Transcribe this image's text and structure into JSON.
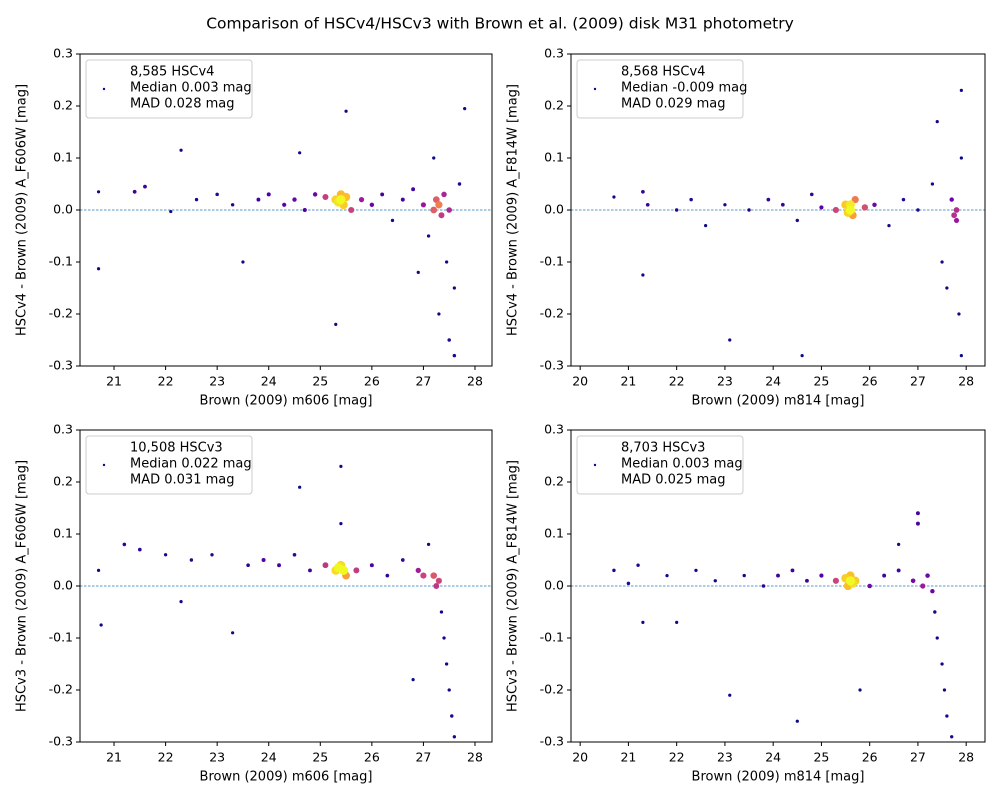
{
  "title": "Comparison of HSCv4/HSCv3 with Brown et al. (2009) disk M31 photometry",
  "chart_data": [
    {
      "type": "scatter",
      "xlabel": "Brown (2009) m606 [mag]",
      "ylabel": "HSCv4 - Brown (2009) A_F606W [mag]",
      "xlim": [
        20.34,
        28.33
      ],
      "ylim": [
        -0.3,
        0.3
      ],
      "xticks": [
        21,
        22,
        23,
        24,
        25,
        26,
        27,
        28
      ],
      "yticks": [
        -0.3,
        -0.2,
        -0.1,
        {
          "value": 0,
          "label": "0.0"
        },
        0.1,
        0.2,
        0.3
      ],
      "reference_line": 0,
      "legend": "upper left",
      "colormap": "plasma",
      "series": [
        {
          "name": [
            "8,585 HSCv4",
            "Median 0.003 mag",
            "MAD 0.028 mag"
          ],
          "x": [
            20.7,
            20.7,
            21.4,
            21.6,
            22.1,
            22.3,
            22.6,
            23.0,
            23.3,
            23.5,
            23.8,
            24.0,
            24.3,
            24.5,
            24.7,
            24.9,
            25.1,
            25.3,
            25.35,
            25.4,
            25.45,
            25.5,
            25.4,
            25.6,
            25.8,
            26.0,
            26.2,
            26.4,
            26.6,
            26.8,
            27.0,
            27.1,
            27.2,
            27.25,
            27.3,
            27.35,
            27.4,
            27.45,
            27.5,
            27.6,
            27.7,
            27.3,
            27.5,
            27.2,
            26.9,
            27.6,
            25.3,
            25.5,
            24.6,
            27.8
          ],
          "values": [
            0.035,
            -0.113,
            0.035,
            0.045,
            -0.003,
            0.115,
            0.02,
            0.03,
            0.01,
            -0.1,
            0.02,
            0.03,
            0.01,
            0.02,
            0.0,
            0.03,
            0.025,
            0.02,
            0.015,
            0.02,
            0.01,
            0.025,
            0.03,
            0.0,
            0.02,
            0.01,
            0.03,
            -0.02,
            0.02,
            0.04,
            0.01,
            -0.05,
            0.0,
            0.02,
            0.01,
            -0.01,
            0.03,
            -0.1,
            0.0,
            -0.15,
            0.05,
            -0.2,
            -0.25,
            0.1,
            -0.12,
            -0.28,
            -0.22,
            0.19,
            0.11,
            0.195
          ]
        }
      ]
    },
    {
      "type": "scatter",
      "xlabel": "Brown (2009) m814 [mag]",
      "ylabel": "HSCv4 - Brown (2009) A_F814W [mag]",
      "xlim": [
        19.81,
        28.39
      ],
      "ylim": [
        -0.3,
        0.3
      ],
      "xticks": [
        20,
        21,
        22,
        23,
        24,
        25,
        26,
        27,
        28
      ],
      "yticks": [
        -0.3,
        -0.2,
        -0.1,
        {
          "value": 0,
          "label": "0.0"
        },
        0.1,
        0.2,
        0.3
      ],
      "reference_line": 0,
      "legend": "upper left",
      "colormap": "plasma",
      "series": [
        {
          "name": [
            "8,568 HSCv4",
            "Median -0.009 mag",
            "MAD 0.029 mag"
          ],
          "x": [
            20.7,
            21.3,
            21.3,
            21.4,
            22.0,
            22.3,
            22.6,
            23.0,
            23.1,
            23.5,
            23.9,
            24.2,
            24.5,
            24.8,
            25.0,
            25.3,
            25.5,
            25.55,
            25.6,
            25.6,
            25.65,
            25.7,
            25.9,
            26.1,
            26.4,
            26.7,
            27.0,
            27.3,
            27.5,
            27.7,
            27.75,
            27.8,
            27.8,
            27.85,
            27.9,
            27.9,
            27.6,
            27.4,
            24.6,
            27.9
          ],
          "values": [
            0.025,
            0.035,
            -0.125,
            0.01,
            0.0,
            0.02,
            -0.03,
            0.01,
            -0.25,
            0.0,
            0.02,
            0.01,
            -0.02,
            0.03,
            0.005,
            0.0,
            0.01,
            -0.005,
            0.0,
            0.01,
            -0.01,
            0.02,
            0.005,
            0.01,
            -0.03,
            0.02,
            0.0,
            0.05,
            -0.1,
            0.02,
            -0.01,
            0.0,
            -0.02,
            -0.2,
            -0.28,
            0.1,
            -0.15,
            0.17,
            -0.28,
            0.23
          ]
        }
      ]
    },
    {
      "type": "scatter",
      "xlabel": "Brown (2009) m606 [mag]",
      "ylabel": "HSCv3 - Brown (2009) A_F606W [mag]",
      "xlim": [
        20.34,
        28.33
      ],
      "ylim": [
        -0.3,
        0.3
      ],
      "xticks": [
        21,
        22,
        23,
        24,
        25,
        26,
        27,
        28
      ],
      "yticks": [
        -0.3,
        -0.2,
        -0.1,
        {
          "value": 0,
          "label": "0.0"
        },
        0.1,
        0.2,
        0.3
      ],
      "reference_line": 0,
      "legend": "upper left",
      "colormap": "plasma",
      "series": [
        {
          "name": [
            "10,508 HSCv3",
            "Median 0.022 mag",
            "MAD 0.031 mag"
          ],
          "x": [
            20.7,
            20.75,
            21.2,
            21.5,
            22.0,
            22.3,
            22.5,
            22.9,
            23.3,
            23.6,
            23.9,
            24.2,
            24.5,
            24.8,
            25.1,
            25.3,
            25.35,
            25.4,
            25.45,
            25.5,
            25.4,
            25.7,
            26.0,
            26.3,
            26.6,
            26.9,
            27.0,
            27.1,
            27.2,
            27.25,
            27.3,
            27.35,
            27.4,
            27.45,
            27.5,
            27.55,
            27.6,
            24.6,
            25.4,
            26.8
          ],
          "values": [
            0.03,
            -0.075,
            0.08,
            0.07,
            0.06,
            -0.03,
            0.05,
            0.06,
            -0.09,
            0.04,
            0.05,
            0.04,
            0.06,
            0.03,
            0.04,
            0.03,
            0.035,
            0.04,
            0.03,
            0.02,
            0.12,
            0.03,
            0.04,
            0.02,
            0.05,
            0.03,
            0.02,
            0.08,
            0.02,
            0.0,
            0.01,
            -0.05,
            -0.1,
            -0.15,
            -0.2,
            -0.25,
            -0.29,
            0.19,
            0.23,
            -0.18
          ]
        }
      ]
    },
    {
      "type": "scatter",
      "xlabel": "Brown (2009) m814 [mag]",
      "ylabel": "HSCv3 - Brown (2009) A_F814W [mag]",
      "xlim": [
        19.81,
        28.39
      ],
      "ylim": [
        -0.3,
        0.3
      ],
      "xticks": [
        20,
        21,
        22,
        23,
        24,
        25,
        26,
        27,
        28
      ],
      "yticks": [
        -0.3,
        -0.2,
        -0.1,
        {
          "value": 0,
          "label": "0.0"
        },
        0.1,
        0.2,
        0.3
      ],
      "reference_line": 0,
      "legend": "upper left",
      "colormap": "plasma",
      "series": [
        {
          "name": [
            "8,703 HSCv3",
            "Median 0.003 mag",
            "MAD 0.025 mag"
          ],
          "x": [
            20.7,
            21.0,
            21.2,
            21.3,
            21.8,
            22.0,
            22.4,
            22.8,
            23.1,
            23.4,
            23.8,
            24.1,
            24.4,
            24.7,
            25.0,
            25.3,
            25.5,
            25.55,
            25.6,
            25.6,
            25.65,
            25.7,
            26.0,
            26.3,
            26.6,
            26.9,
            27.0,
            27.1,
            27.2,
            27.3,
            27.35,
            27.4,
            27.5,
            27.55,
            27.6,
            27.7,
            24.5,
            27.0,
            25.8,
            26.6
          ],
          "values": [
            0.03,
            0.005,
            0.04,
            -0.07,
            0.02,
            -0.07,
            0.03,
            0.01,
            -0.21,
            0.02,
            0.0,
            0.02,
            0.03,
            0.01,
            0.02,
            0.01,
            0.015,
            0.0,
            0.01,
            0.02,
            0.005,
            0.01,
            0.0,
            0.02,
            0.03,
            0.01,
            0.14,
            0.0,
            0.02,
            -0.01,
            -0.05,
            -0.1,
            -0.15,
            -0.2,
            -0.25,
            -0.29,
            -0.26,
            0.12,
            -0.2,
            0.08
          ]
        }
      ]
    }
  ]
}
